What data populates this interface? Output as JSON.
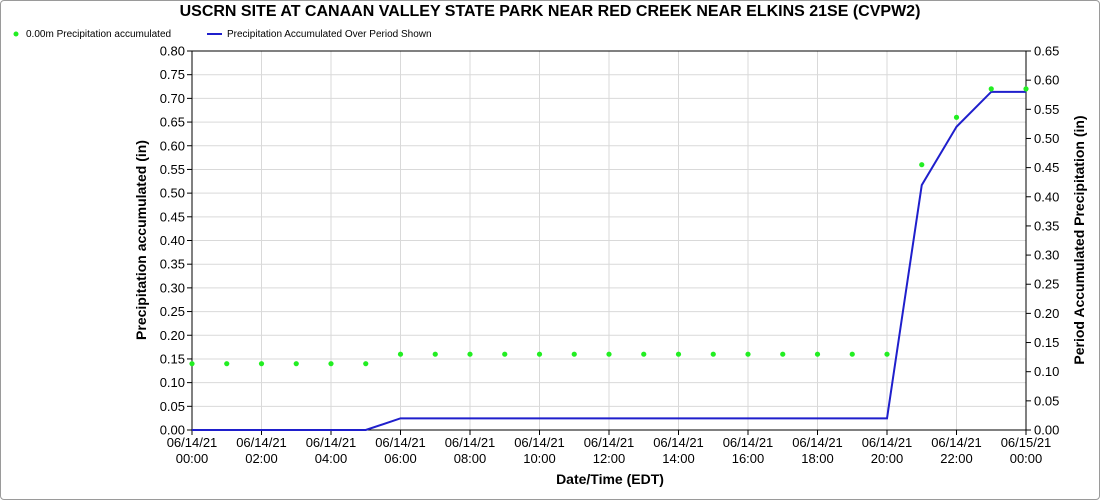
{
  "chart_data": {
    "type": "line",
    "title": "USCRN SITE AT CANAAN VALLEY STATE PARK NEAR RED CREEK NEAR ELKINS 21SE (CVPW2)",
    "xlabel": "Date/Time (EDT)",
    "ylabel_left": "Precipitation accumulated (in)",
    "ylabel_right": "Period Accumulated Precipitation (in)",
    "x_ticks": [
      [
        "06/14/21",
        "00:00"
      ],
      [
        "06/14/21",
        "02:00"
      ],
      [
        "06/14/21",
        "04:00"
      ],
      [
        "06/14/21",
        "06:00"
      ],
      [
        "06/14/21",
        "08:00"
      ],
      [
        "06/14/21",
        "10:00"
      ],
      [
        "06/14/21",
        "12:00"
      ],
      [
        "06/14/21",
        "14:00"
      ],
      [
        "06/14/21",
        "16:00"
      ],
      [
        "06/14/21",
        "18:00"
      ],
      [
        "06/14/21",
        "20:00"
      ],
      [
        "06/14/21",
        "22:00"
      ],
      [
        "06/15/21",
        "00:00"
      ]
    ],
    "xlim_hours": [
      0,
      24
    ],
    "ylim_left": [
      0,
      0.8
    ],
    "ylim_right": [
      0,
      0.65
    ],
    "yticks_left": [
      "0.00",
      "0.05",
      "0.10",
      "0.15",
      "0.20",
      "0.25",
      "0.30",
      "0.35",
      "0.40",
      "0.45",
      "0.50",
      "0.55",
      "0.60",
      "0.65",
      "0.70",
      "0.75",
      "0.80"
    ],
    "yticks_right": [
      "0.00",
      "0.05",
      "0.10",
      "0.15",
      "0.20",
      "0.25",
      "0.30",
      "0.35",
      "0.40",
      "0.45",
      "0.50",
      "0.55",
      "0.60",
      "0.65"
    ],
    "grid": true,
    "legend_position": "top-left",
    "series": [
      {
        "name": "0.00m Precipitation accumulated",
        "kind": "scatter",
        "axis": "left",
        "color": "#22ee22",
        "x": [
          0,
          1,
          2,
          3,
          4,
          5,
          6,
          7,
          8,
          9,
          10,
          11,
          12,
          13,
          14,
          15,
          16,
          17,
          18,
          19,
          20,
          21,
          22,
          23,
          24
        ],
        "y": [
          0.14,
          0.14,
          0.14,
          0.14,
          0.14,
          0.14,
          0.16,
          0.16,
          0.16,
          0.16,
          0.16,
          0.16,
          0.16,
          0.16,
          0.16,
          0.16,
          0.16,
          0.16,
          0.16,
          0.16,
          0.16,
          0.56,
          0.66,
          0.72,
          0.72
        ]
      },
      {
        "name": "Precipitation Accumulated Over Period Shown",
        "kind": "line",
        "axis": "right",
        "color": "#1f1fcc",
        "x": [
          0,
          1,
          2,
          3,
          4,
          5,
          6,
          7,
          8,
          9,
          10,
          11,
          12,
          13,
          14,
          15,
          16,
          17,
          18,
          19,
          20,
          21,
          22,
          23,
          24
        ],
        "y": [
          0,
          0,
          0,
          0,
          0,
          0,
          0.02,
          0.02,
          0.02,
          0.02,
          0.02,
          0.02,
          0.02,
          0.02,
          0.02,
          0.02,
          0.02,
          0.02,
          0.02,
          0.02,
          0.02,
          0.42,
          0.52,
          0.58,
          0.58
        ]
      }
    ]
  }
}
